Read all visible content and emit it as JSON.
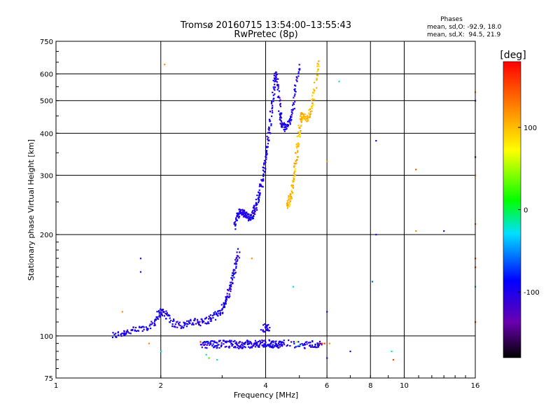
{
  "chart_data": {
    "type": "scatter",
    "title": "Tromsø 20160715 13:54:00–13:55:43",
    "subtitle": "RwPretec (8p)",
    "stats": {
      "heading": "Phases",
      "line1": "mean, sd,O: -92.9, 18.0",
      "line2": "mean, sd,X:  94.5, 21.9"
    },
    "xlabel": "Frequency [MHz]",
    "ylabel": "Stationary phase Virtual Height [km]",
    "xscale": "log",
    "yscale": "log",
    "xlim": [
      1,
      16
    ],
    "ylim": [
      75,
      750
    ],
    "xticks": [
      1,
      2,
      4,
      6,
      8,
      10,
      16
    ],
    "yticks": [
      75,
      100,
      200,
      300,
      400,
      500,
      600,
      750
    ],
    "grid": true,
    "colorbar": {
      "label": "[deg]",
      "range": [
        -180,
        180
      ],
      "ticks": [
        100,
        0,
        -100
      ],
      "position": "right"
    },
    "traces": [
      {
        "freq": [
          1.45,
          1.55,
          1.6,
          1.7,
          1.8,
          1.9,
          1.95,
          2.0,
          2.05,
          2.1,
          2.2,
          2.3,
          2.4,
          2.5,
          2.6,
          2.7,
          2.8,
          2.9,
          3.0,
          3.05,
          3.1,
          3.15,
          3.2,
          3.25,
          3.3,
          3.35
        ],
        "height": [
          100,
          102,
          103,
          104,
          106,
          108,
          115,
          118,
          117,
          114,
          108,
          108,
          109,
          110,
          110,
          111,
          113,
          116,
          120,
          125,
          130,
          137,
          145,
          155,
          166,
          178
        ],
        "phase": -100
      },
      {
        "freq": [
          3.25,
          3.3,
          3.35,
          3.4,
          3.45,
          3.5,
          3.55,
          3.6,
          3.65,
          3.7,
          3.75,
          3.8,
          3.85,
          3.9,
          3.95,
          4.0,
          4.05,
          4.1,
          4.15,
          4.2,
          4.25,
          4.3,
          4.35,
          4.4,
          4.45,
          4.5,
          4.6,
          4.7,
          4.8,
          4.9,
          5.0
        ],
        "height": [
          210,
          225,
          232,
          233,
          232,
          228,
          225,
          225,
          228,
          234,
          243,
          255,
          268,
          285,
          308,
          335,
          370,
          410,
          460,
          520,
          580,
          600,
          520,
          460,
          430,
          415,
          420,
          440,
          480,
          560,
          640
        ],
        "phase": -100
      },
      {
        "freq": [
          4.6,
          4.65,
          4.7,
          4.75,
          4.8,
          4.85,
          4.9,
          4.95,
          5.0,
          5.05,
          5.1,
          5.2,
          5.3,
          5.4,
          5.5,
          5.6,
          5.7
        ],
        "height": [
          245,
          248,
          255,
          268,
          285,
          310,
          340,
          375,
          410,
          440,
          450,
          440,
          450,
          470,
          520,
          590,
          650
        ],
        "phase": 100
      },
      {
        "freq": [
          2.6,
          2.7,
          2.8,
          2.9,
          3.0,
          3.1,
          3.2,
          3.3,
          3.4,
          3.5,
          3.6,
          3.7,
          3.8,
          3.9,
          4.0,
          4.1,
          4.2,
          4.3,
          4.4,
          4.5,
          5.0,
          5.2,
          5.4,
          5.6,
          5.8
        ],
        "height": [
          94,
          94,
          95,
          94,
          95,
          94,
          95,
          94,
          94,
          95,
          94,
          95,
          94,
          95,
          95,
          95,
          94,
          95,
          94,
          95,
          94,
          94,
          95,
          94,
          94
        ],
        "phase": -100
      },
      {
        "freq": [
          3.9,
          4.0,
          4.1
        ],
        "height": [
          105,
          106,
          105
        ],
        "phase": -100
      }
    ],
    "scatter_points": [
      {
        "freq": 2.05,
        "height": 640,
        "phase": 120
      },
      {
        "freq": 6.5,
        "height": 570,
        "phase": -30
      },
      {
        "freq": 6.0,
        "height": 330,
        "phase": 120
      },
      {
        "freq": 8.3,
        "height": 380,
        "phase": -100
      },
      {
        "freq": 8.3,
        "height": 200,
        "phase": -110
      },
      {
        "freq": 8.1,
        "height": 145,
        "phase": -60
      },
      {
        "freq": 6.0,
        "height": 118,
        "phase": -100
      },
      {
        "freq": 10.8,
        "height": 312,
        "phase": 140
      },
      {
        "freq": 10.8,
        "height": 205,
        "phase": 120
      },
      {
        "freq": 13.0,
        "height": 205,
        "phase": -120
      },
      {
        "freq": 9.2,
        "height": 90,
        "phase": -20
      },
      {
        "freq": 9.3,
        "height": 85,
        "phase": 150
      },
      {
        "freq": 7.0,
        "height": 90,
        "phase": -100
      },
      {
        "freq": 1.75,
        "height": 170,
        "phase": -110
      },
      {
        "freq": 1.75,
        "height": 155,
        "phase": -110
      },
      {
        "freq": 1.85,
        "height": 95,
        "phase": 120
      },
      {
        "freq": 1.55,
        "height": 118,
        "phase": 120
      },
      {
        "freq": 3.65,
        "height": 170,
        "phase": 120
      },
      {
        "freq": 4.8,
        "height": 140,
        "phase": -30
      },
      {
        "freq": 2.0,
        "height": 90,
        "phase": -30
      },
      {
        "freq": 5.7,
        "height": 95,
        "phase": 175
      },
      {
        "freq": 5.8,
        "height": 95,
        "phase": 165
      },
      {
        "freq": 5.9,
        "height": 95,
        "phase": 160
      },
      {
        "freq": 6.1,
        "height": 95,
        "phase": 120
      },
      {
        "freq": 4.9,
        "height": 96,
        "phase": 50
      },
      {
        "freq": 5.0,
        "height": 94,
        "phase": -20
      },
      {
        "freq": 2.6,
        "height": 96,
        "phase": 160
      },
      {
        "freq": 2.7,
        "height": 88,
        "phase": -20
      },
      {
        "freq": 2.75,
        "height": 86,
        "phase": 20
      },
      {
        "freq": 2.9,
        "height": 85,
        "phase": -20
      },
      {
        "freq": 6.0,
        "height": 86,
        "phase": -100
      },
      {
        "freq": 16.0,
        "height": 530,
        "phase": 120
      },
      {
        "freq": 16.0,
        "height": 500,
        "phase": -120
      },
      {
        "freq": 16.0,
        "height": 340,
        "phase": -150
      },
      {
        "freq": 16.0,
        "height": 300,
        "phase": 120
      },
      {
        "freq": 16.0,
        "height": 215,
        "phase": 140
      },
      {
        "freq": 16.0,
        "height": 170,
        "phase": 150
      },
      {
        "freq": 16.0,
        "height": 160,
        "phase": 150
      },
      {
        "freq": 16.0,
        "height": 140,
        "phase": -40
      },
      {
        "freq": 16.0,
        "height": 110,
        "phase": 150
      }
    ]
  }
}
